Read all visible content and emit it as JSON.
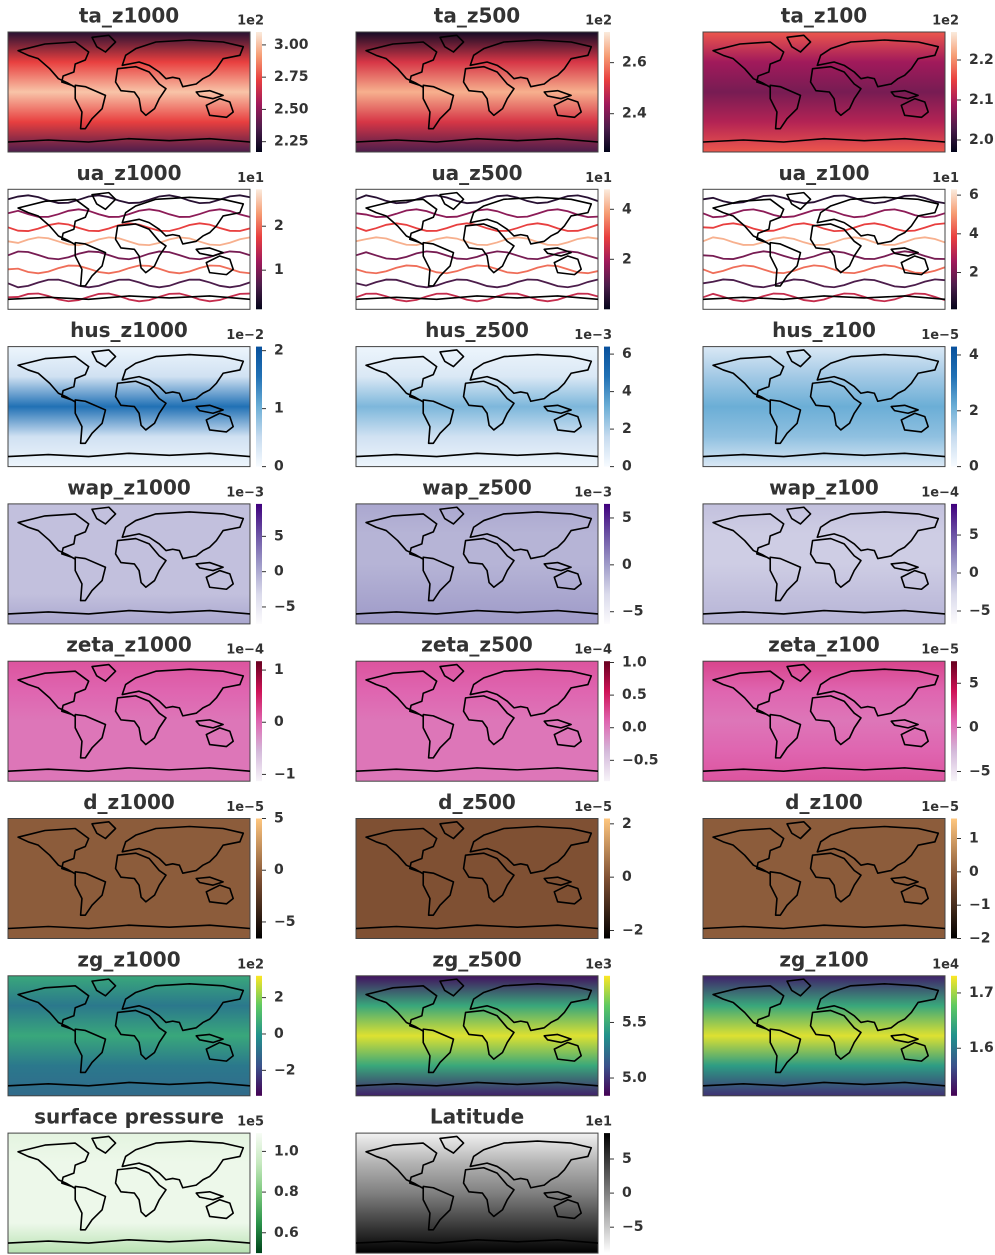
{
  "chart_data": [
    {
      "type": "map",
      "title": "ta_z1000",
      "colormap": [
        "#03051a",
        "#4c1d4b",
        "#a11a5b",
        "#e83f3f",
        "#f69c73",
        "#faebdd"
      ],
      "colorbar": {
        "label": "1e2",
        "lim": [
          2.17,
          3.1
        ],
        "ticks": [
          2.25,
          {
            "value": 2.5,
            "label": "2.50"
          },
          2.75,
          {
            "value": 3,
            "label": "3.00"
          }
        ]
      }
    },
    {
      "type": "map",
      "title": "ta_z500",
      "colormap": [
        "#03051a",
        "#4c1d4b",
        "#a11a5b",
        "#e83f3f",
        "#f69c73",
        "#faebdd"
      ],
      "colorbar": {
        "label": "1e2",
        "lim": [
          2.25,
          2.72
        ],
        "ticks": [
          2.4,
          2.6
        ]
      }
    },
    {
      "type": "map",
      "title": "ta_z100",
      "colormap": [
        "#03051a",
        "#4c1d4b",
        "#a11a5b",
        "#e83f3f",
        "#f69c73",
        "#faebdd"
      ],
      "colorbar": {
        "label": "1e2",
        "lim": [
          1.97,
          2.27
        ],
        "ticks": [
          {
            "value": 2,
            "label": "2.0"
          },
          2.1,
          2.2
        ]
      }
    },
    {
      "type": "streamlines",
      "title": "ua_z1000",
      "colormap": [
        "#03051a",
        "#4c1d4b",
        "#a11a5b",
        "#e83f3f",
        "#f69c73",
        "#faebdd"
      ],
      "colorbar": {
        "label": "1e1",
        "lim": [
          0.11,
          2.84
        ],
        "ticks": [
          1,
          2
        ]
      }
    },
    {
      "type": "streamlines",
      "title": "ua_z500",
      "colormap": [
        "#03051a",
        "#4c1d4b",
        "#a11a5b",
        "#e83f3f",
        "#f69c73",
        "#faebdd"
      ],
      "colorbar": {
        "label": "1e1",
        "lim": [
          0,
          4.8
        ],
        "ticks": [
          2,
          4
        ]
      }
    },
    {
      "type": "streamlines",
      "title": "ua_z100",
      "colormap": [
        "#03051a",
        "#4c1d4b",
        "#a11a5b",
        "#e83f3f",
        "#f69c73",
        "#faebdd"
      ],
      "colorbar": {
        "label": "1e1",
        "lim": [
          0.1,
          6.3
        ],
        "ticks": [
          2,
          4,
          6
        ]
      }
    },
    {
      "type": "map",
      "title": "hus_z1000",
      "colormap": [
        "#f7fbff",
        "#c6dbef",
        "#6baed6",
        "#2171b5",
        "#08519c"
      ],
      "colorbar": {
        "label": "1e−2",
        "lim": [
          0,
          2.07
        ],
        "ticks": [
          0,
          1,
          2
        ]
      }
    },
    {
      "type": "map",
      "title": "hus_z500",
      "colormap": [
        "#f7fbff",
        "#c6dbef",
        "#6baed6",
        "#2171b5",
        "#08519c"
      ],
      "colorbar": {
        "label": "1e−3",
        "lim": [
          0,
          6.4
        ],
        "ticks": [
          0,
          2,
          4,
          6
        ]
      }
    },
    {
      "type": "map",
      "title": "hus_z100",
      "colormap": [
        "#f7fbff",
        "#c6dbef",
        "#6baed6",
        "#2171b5",
        "#08519c"
      ],
      "colorbar": {
        "label": "1e−5",
        "lim": [
          0,
          4.3
        ],
        "ticks": [
          0,
          2,
          4
        ]
      }
    },
    {
      "type": "map",
      "title": "wap_z1000",
      "colormap": [
        "#fcfbfd",
        "#dadaeb",
        "#9e9ac8",
        "#6a51a3",
        "#3f007d"
      ],
      "colorbar": {
        "label": "1e−3",
        "lim": [
          -7.4,
          9.6
        ],
        "ticks": [
          {
            "value": -5,
            "label": "−5"
          },
          0,
          5
        ]
      }
    },
    {
      "type": "map",
      "title": "wap_z500",
      "colormap": [
        "#fcfbfd",
        "#dadaeb",
        "#9e9ac8",
        "#6a51a3",
        "#3f007d"
      ],
      "colorbar": {
        "label": "1e−3",
        "lim": [
          -6.3,
          6.5
        ],
        "ticks": [
          {
            "value": -5,
            "label": "−5"
          },
          0,
          5
        ]
      }
    },
    {
      "type": "map",
      "title": "wap_z100",
      "colormap": [
        "#fcfbfd",
        "#dadaeb",
        "#9e9ac8",
        "#6a51a3",
        "#3f007d"
      ],
      "colorbar": {
        "label": "1e−4",
        "lim": [
          -6.7,
          9.1
        ],
        "ticks": [
          {
            "value": -5,
            "label": "−5"
          },
          0,
          5
        ]
      }
    },
    {
      "type": "map",
      "title": "zeta_z1000",
      "colormap": [
        "#f7f4f9",
        "#d4b9da",
        "#df65b0",
        "#ce1256",
        "#67001f"
      ],
      "colorbar": {
        "label": "1e−4",
        "lim": [
          -1.13,
          1.17
        ],
        "ticks": [
          {
            "value": -1,
            "label": "−1"
          },
          0,
          1
        ]
      }
    },
    {
      "type": "map",
      "title": "zeta_z500",
      "colormap": [
        "#f7f4f9",
        "#d4b9da",
        "#df65b0",
        "#ce1256",
        "#67001f"
      ],
      "colorbar": {
        "label": "1e−4",
        "lim": [
          -0.82,
          1.02
        ],
        "ticks": [
          {
            "value": -0.5,
            "label": "−0.5"
          },
          {
            "value": 0,
            "label": "0.0"
          },
          0.5,
          {
            "value": 1,
            "label": "1.0"
          }
        ]
      }
    },
    {
      "type": "map",
      "title": "zeta_z100",
      "colormap": [
        "#f7f4f9",
        "#d4b9da",
        "#df65b0",
        "#ce1256",
        "#67001f"
      ],
      "colorbar": {
        "label": "1e−5",
        "lim": [
          -6.1,
          7.5
        ],
        "ticks": [
          {
            "value": -5,
            "label": "−5"
          },
          0,
          5
        ]
      }
    },
    {
      "type": "map",
      "title": "d_z1000",
      "colormap": [
        "#000000",
        "#7f5033",
        "#ffc77f"
      ],
      "colorbar": {
        "label": "1e−5",
        "lim": [
          -6.6,
          5
        ],
        "ticks": [
          {
            "value": -5,
            "label": "−5"
          },
          0,
          5
        ]
      }
    },
    {
      "type": "map",
      "title": "d_z500",
      "colormap": [
        "#000000",
        "#7f5033",
        "#ffc77f"
      ],
      "colorbar": {
        "label": "1e−5",
        "lim": [
          -2.3,
          2.2
        ],
        "ticks": [
          {
            "value": -2,
            "label": "−2"
          },
          0,
          2
        ]
      }
    },
    {
      "type": "map",
      "title": "d_z100",
      "colormap": [
        "#000000",
        "#7f5033",
        "#ffc77f"
      ],
      "colorbar": {
        "label": "1e−5",
        "lim": [
          -2,
          1.6
        ],
        "ticks": [
          {
            "value": -2,
            "label": "−2"
          },
          {
            "value": -1,
            "label": "−1"
          },
          0,
          1
        ]
      }
    },
    {
      "type": "map",
      "title": "zg_z1000",
      "colormap": [
        "#440154",
        "#3b528b",
        "#21918c",
        "#5ec962",
        "#fde725"
      ],
      "colorbar": {
        "label": "1e2",
        "lim": [
          -3.4,
          3.2
        ],
        "ticks": [
          {
            "value": -2,
            "label": "−2"
          },
          0,
          2
        ]
      }
    },
    {
      "type": "map",
      "title": "zg_z500",
      "colormap": [
        "#440154",
        "#3b528b",
        "#21918c",
        "#5ec962",
        "#fde725"
      ],
      "colorbar": {
        "label": "1e3",
        "lim": [
          4.84,
          5.92
        ],
        "ticks": [
          {
            "value": 5,
            "label": "5.0"
          },
          5.5
        ]
      }
    },
    {
      "type": "map",
      "title": "zg_z100",
      "colormap": [
        "#440154",
        "#3b528b",
        "#21918c",
        "#5ec962",
        "#fde725"
      ],
      "colorbar": {
        "label": "1e4",
        "lim": [
          1.514,
          1.731
        ],
        "ticks": [
          1.6,
          1.7
        ]
      }
    },
    {
      "type": "map",
      "title": "surface pressure",
      "colormap": [
        "#00441b",
        "#2a924a",
        "#7bc87c",
        "#c7e9c0",
        "#f7fcf5"
      ],
      "colorbar": {
        "label": "1e5",
        "lim": [
          0.5,
          1.09
        ],
        "ticks": [
          0.6,
          0.8,
          {
            "value": 1,
            "label": "1.0"
          }
        ]
      }
    },
    {
      "type": "map",
      "title": "Latitude",
      "colormap": [
        "#ffffff",
        "#000000"
      ],
      "colorbar": {
        "label": "1e1",
        "lim": [
          -8.8,
          8.8
        ],
        "ticks": [
          {
            "value": -5,
            "label": "−5"
          },
          0,
          5
        ]
      }
    }
  ]
}
